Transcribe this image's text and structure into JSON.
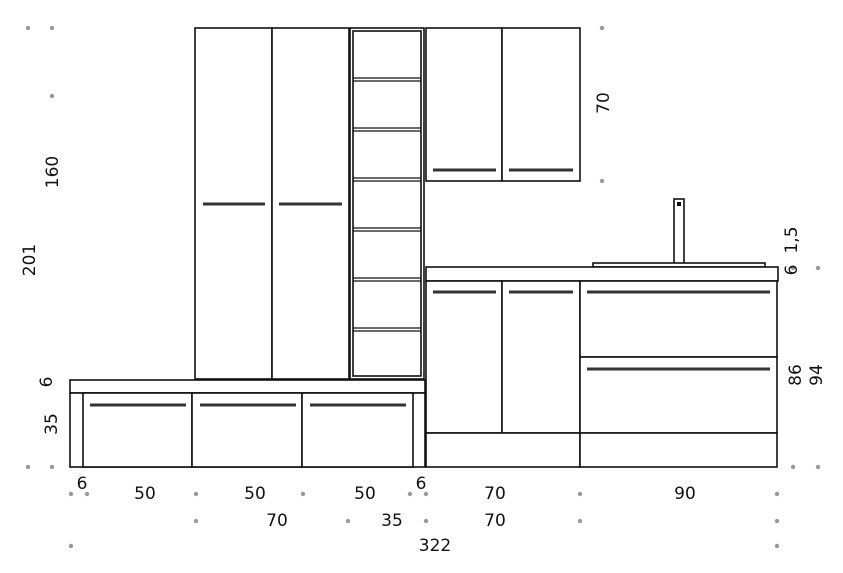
{
  "colors": {
    "line": "#111111",
    "handle": "#333333",
    "dot": "#999999"
  },
  "dimensions": {
    "left": {
      "tall_height": "160",
      "total_height": "201",
      "bench_top": "6",
      "bench_height": "35"
    },
    "right": {
      "wall_height": "70",
      "sink_rim": "1,5",
      "countertop": "6",
      "base_height": "86",
      "total_base": "94"
    },
    "bottom_row1": {
      "side_left": "6",
      "drawer1": "50",
      "drawer2": "50",
      "drawer3": "50",
      "side_right": "6",
      "base_doors": "70",
      "base_drawers": "90"
    },
    "bottom_row2": {
      "tall_unit": "70",
      "shelf_unit": "35",
      "wall_unit": "70"
    },
    "bottom_row3": {
      "total_width": "322"
    }
  }
}
